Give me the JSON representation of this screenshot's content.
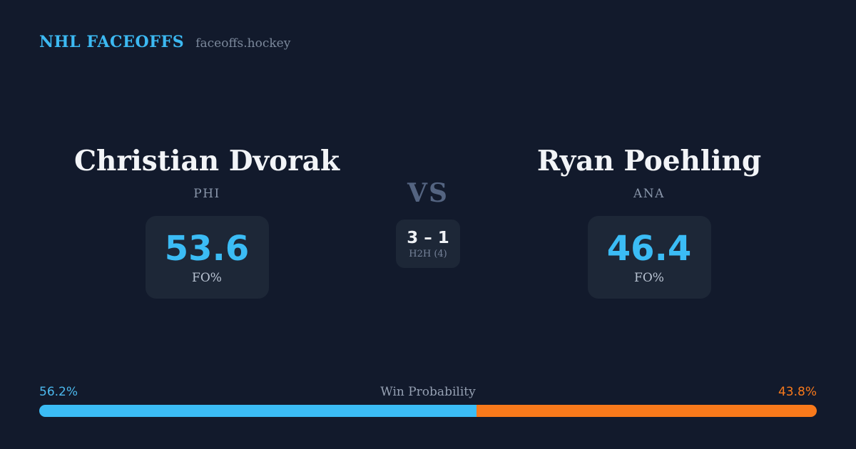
{
  "theme": {
    "background": "#121a2c",
    "card_background": "#1d2737",
    "accent_blue": "#3bbcf5",
    "accent_orange": "#f8791b",
    "text_primary": "#f2f4f7",
    "text_muted": "#8a97ab"
  },
  "header": {
    "brand": "NHL FACEOFFS",
    "site": "faceoffs.hockey"
  },
  "matchup": {
    "left_player": {
      "name": "Christian Dvorak",
      "team": "PHI",
      "stat_value": "53.6",
      "stat_label": "FO%"
    },
    "versus": {
      "label": "VS",
      "h2h_score": "3 – 1",
      "h2h_label": "H2H (4)"
    },
    "right_player": {
      "name": "Ryan Poehling",
      "team": "ANA",
      "stat_value": "46.4",
      "stat_label": "FO%"
    }
  },
  "win_probability": {
    "title": "Win Probability",
    "left_label": "56.2%",
    "right_label": "43.8%",
    "left_value": 56.2,
    "right_value": 43.8
  },
  "chart_data": {
    "type": "bar",
    "title": "Win Probability",
    "categories": [
      "Christian Dvorak (PHI)",
      "Ryan Poehling (ANA)"
    ],
    "values": [
      56.2,
      43.8
    ],
    "xlabel": "",
    "ylabel": "Win Probability (%)",
    "ylim": [
      0,
      100
    ],
    "legend_position": "none",
    "colors": [
      "#3bbcf5",
      "#f8791b"
    ]
  }
}
